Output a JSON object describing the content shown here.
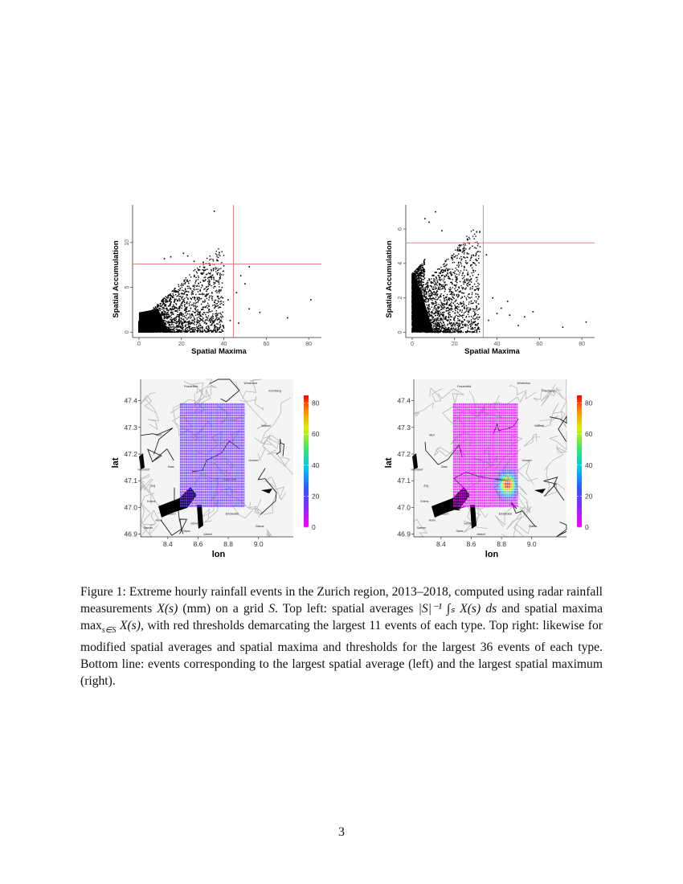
{
  "chart_data": [
    {
      "type": "scatter",
      "title": "",
      "xlabel": "Spatial Maxima",
      "ylabel": "Spatial Accumulation",
      "xlim": [
        -3,
        86
      ],
      "ylim": [
        -0.6,
        14.2
      ],
      "xticks": [
        "0",
        "20",
        "40",
        "60",
        "80"
      ],
      "yticks": [
        "0",
        "5",
        "10"
      ],
      "thresholds": {
        "x": 44.5,
        "y": 7.6
      },
      "threshold_color": "#e57373",
      "cloud": {
        "x_max": 40,
        "y_max": 9.5
      },
      "points_outliers": [
        {
          "x": 35.5,
          "y": 13.5
        },
        {
          "x": 21,
          "y": 8.8
        },
        {
          "x": 12,
          "y": 8.2
        },
        {
          "x": 15,
          "y": 8.4
        },
        {
          "x": 23,
          "y": 8.5
        },
        {
          "x": 26,
          "y": 7.9
        },
        {
          "x": 40,
          "y": 7.4
        },
        {
          "x": 52,
          "y": 7.3
        },
        {
          "x": 48,
          "y": 6.3
        },
        {
          "x": 50,
          "y": 5.4
        },
        {
          "x": 46,
          "y": 4.4
        },
        {
          "x": 42,
          "y": 3.6
        },
        {
          "x": 52,
          "y": 2.6
        },
        {
          "x": 57,
          "y": 2.2
        },
        {
          "x": 70,
          "y": 1.6
        },
        {
          "x": 81,
          "y": 3.6
        },
        {
          "x": 47,
          "y": 1.0
        },
        {
          "x": 43,
          "y": 1.3
        },
        {
          "x": 38,
          "y": 4.6
        },
        {
          "x": 33,
          "y": 6.1
        },
        {
          "x": 30,
          "y": 4.2
        },
        {
          "x": 36,
          "y": 2.9
        }
      ]
    },
    {
      "type": "scatter",
      "title": "",
      "xlabel": "Spatial Maxima",
      "ylabel": "Spatial Accumulation",
      "xlim": [
        -3,
        86
      ],
      "ylim": [
        -0.3,
        7.4
      ],
      "xticks": [
        "0",
        "20",
        "40",
        "60",
        "80"
      ],
      "yticks": [
        "0",
        "2",
        "4",
        "6"
      ],
      "thresholds": {
        "x": 33.5,
        "y": 5.2
      },
      "threshold_color": "#e57373",
      "cloud": {
        "x_max": 32,
        "y_max": 6.0
      },
      "points_outliers": [
        {
          "x": 11,
          "y": 7.0
        },
        {
          "x": 6,
          "y": 6.6
        },
        {
          "x": 8,
          "y": 6.4
        },
        {
          "x": 14,
          "y": 5.9
        },
        {
          "x": 35,
          "y": 4.5
        },
        {
          "x": 25,
          "y": 2.9
        },
        {
          "x": 31,
          "y": 2.2
        },
        {
          "x": 38,
          "y": 2.0
        },
        {
          "x": 45,
          "y": 1.8
        },
        {
          "x": 46,
          "y": 1.0
        },
        {
          "x": 53,
          "y": 0.9
        },
        {
          "x": 57,
          "y": 1.2
        },
        {
          "x": 71,
          "y": 0.3
        },
        {
          "x": 82,
          "y": 0.6
        },
        {
          "x": 42,
          "y": 1.4
        },
        {
          "x": 36,
          "y": 0.7
        },
        {
          "x": 50,
          "y": 0.4
        },
        {
          "x": 29,
          "y": 3.5
        },
        {
          "x": 21,
          "y": 3.1
        },
        {
          "x": 40,
          "y": 1.1
        }
      ]
    },
    {
      "type": "heatmap",
      "title": "",
      "xlabel": "lon",
      "ylabel": "lat",
      "xlim": [
        8.22,
        9.23
      ],
      "ylim": [
        46.89,
        47.48
      ],
      "xticks": [
        "8.4",
        "8.6",
        "8.8",
        "9.0"
      ],
      "yticks": [
        "46.9",
        "47.0",
        "47.1",
        "47.2",
        "47.3",
        "47.4"
      ],
      "grid_extent": {
        "lon": [
          8.48,
          8.91
        ],
        "lat": [
          47.0,
          47.39
        ]
      },
      "colorbar": {
        "min": 0,
        "max": 85,
        "ticks": [
          "0",
          "20",
          "40",
          "60",
          "80"
        ]
      },
      "field": "uniform",
      "value": 16,
      "map_labels": [
        "Frauenfeld",
        "Winterthur",
        "Kirchberg",
        "Wattwil",
        "Muri",
        "Baar",
        "Rapperswil",
        "Uznach",
        "Einsiedeln",
        "Zug",
        "Luzern",
        "Schwyz",
        "Kriens",
        "Horw",
        "Stans",
        "Sarnen",
        "Altdorf",
        "Glarus",
        "Hochdorf"
      ]
    },
    {
      "type": "heatmap",
      "title": "",
      "xlabel": "lon",
      "ylabel": "lat",
      "xlim": [
        8.22,
        9.23
      ],
      "ylim": [
        46.89,
        47.48
      ],
      "xticks": [
        "8.4",
        "8.6",
        "8.8",
        "9.0"
      ],
      "yticks": [
        "46.9",
        "47.0",
        "47.1",
        "47.2",
        "47.3",
        "47.4"
      ],
      "grid_extent": {
        "lon": [
          8.48,
          8.91
        ],
        "lat": [
          47.0,
          47.39
        ]
      },
      "colorbar": {
        "min": 0,
        "max": 85,
        "ticks": [
          "0",
          "20",
          "40",
          "60",
          "80"
        ]
      },
      "field": "hotspot",
      "value": 3,
      "hotspot": {
        "lon": 8.84,
        "lat": 47.085,
        "peak": 85
      },
      "map_labels": [
        "Frauenfeld",
        "Winterthur",
        "Kirchberg",
        "Wattwil",
        "Muri",
        "Baar",
        "Rapperswil",
        "Uznach",
        "Einsiedeln",
        "Zug",
        "Luzern",
        "Schwyz",
        "Kriens",
        "Horw",
        "Stans",
        "Sarnen",
        "Altdorf",
        "Glarus",
        "Hochdorf"
      ]
    }
  ],
  "caption": {
    "p1": "Figure 1: Extreme hourly rainfall events in the Zurich region, 2013–2018, computed using radar rainfall measurements ",
    "m1": "X(s)",
    "p2": " (mm) on a grid ",
    "m2": "S",
    "p3": ". Top left: spatial averages ",
    "m3": "|S|⁻¹ ∫ₛ X(s) ds",
    "p4": " and spatial maxima ",
    "m4": "max",
    "m4sub": "s∈S",
    "m4b": " X(s)",
    "p5": ", with red thresholds demarcating the largest 11 events of each type. Top right: likewise for modified spatial averages and spatial maxima and thresholds for the largest 36 events of each type. Bottom line: events corresponding to the largest spatial average (left) and the largest spatial maximum (right)."
  },
  "page_number": "3"
}
